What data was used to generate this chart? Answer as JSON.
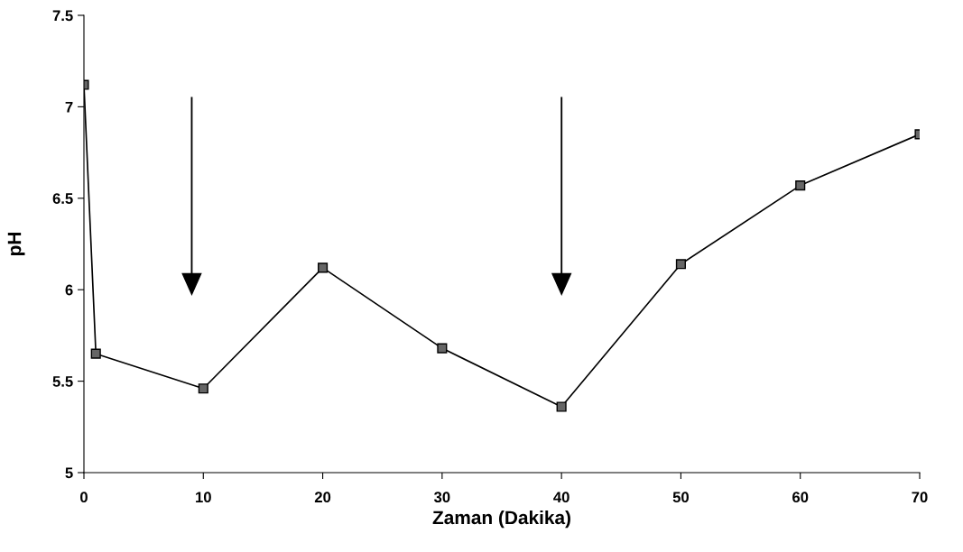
{
  "chart_data": {
    "type": "line",
    "xlabel": "Zaman (Dakika)",
    "ylabel": "pH",
    "x": [
      0,
      1,
      10,
      20,
      30,
      40,
      50,
      60,
      70
    ],
    "series": [
      {
        "color": "#000000",
        "values": [
          7.12,
          5.65,
          5.46,
          6.12,
          5.68,
          5.36,
          6.14,
          6.57,
          6.85
        ]
      }
    ],
    "xlim": [
      0,
      70
    ],
    "xticks": [
      0,
      10,
      20,
      30,
      40,
      50,
      60,
      70
    ],
    "ylim": [
      5,
      7.5
    ],
    "yticks": [
      5,
      5.5,
      6,
      6.5,
      7,
      7.5
    ],
    "marker": "square",
    "line_style": "solid",
    "grid": false,
    "legend": false
  }
}
